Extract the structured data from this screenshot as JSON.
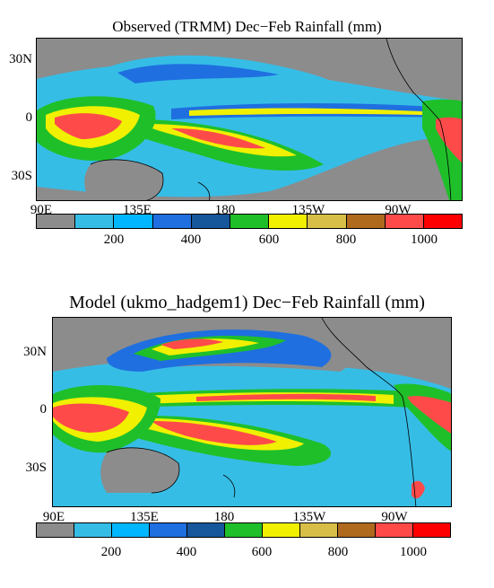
{
  "observed": {
    "title": "Observed (TRMM) Dec−Feb Rainfall (mm)",
    "lat_labels": [
      "30N",
      "0",
      "30S"
    ],
    "lon_labels": [
      "90E",
      "135E",
      "180",
      "135W",
      "90W"
    ],
    "colorbar_ticks": [
      "200",
      "400",
      "600",
      "800",
      "1000"
    ]
  },
  "model": {
    "title": "Model (ukmo_hadgem1) Dec−Feb Rainfall (mm)",
    "lat_labels": [
      "30N",
      "0",
      "30S"
    ],
    "lon_labels": [
      "90E",
      "135E",
      "180",
      "135W",
      "90W"
    ],
    "colorbar_ticks": [
      "200",
      "400",
      "600",
      "800",
      "1000"
    ]
  },
  "colorscale": {
    "bins_mm": [
      0,
      100,
      200,
      300,
      400,
      500,
      600,
      700,
      800,
      900,
      1000,
      1100
    ],
    "colors": [
      "#8c8c8c",
      "#36bde6",
      "#00b7ff",
      "#1f6fe0",
      "#16569a",
      "#1fbf2a",
      "#f0f000",
      "#d7bf47",
      "#b06a1e",
      "#ff4a4a",
      "#ff0000"
    ]
  },
  "map_colors": {
    "land": "#8c8c8c",
    "ocean_dry": "#8c8c8c"
  }
}
